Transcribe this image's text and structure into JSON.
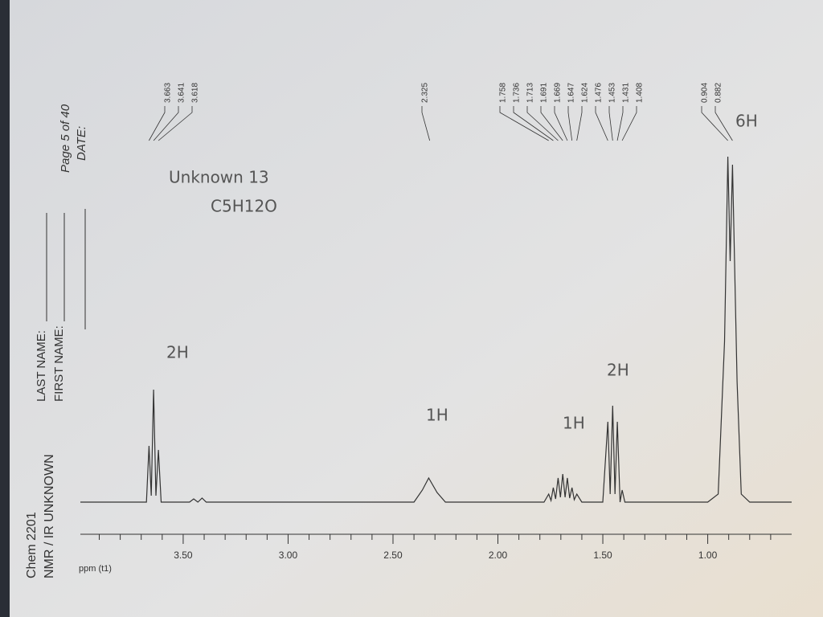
{
  "chart_data": {
    "type": "line",
    "header": {
      "course": "Chem 2201",
      "assignment": "NMR / IR UNKNOWN",
      "last_name": "LAST NAME:",
      "first_name": "FIRST NAME:",
      "page": "Page 5 of 40",
      "date": "DATE:"
    },
    "xlabel": "ppm (t1)",
    "xlim": [
      3.99,
      0.6
    ],
    "xticks": [
      {
        "value": 3.5,
        "label": "3.50"
      },
      {
        "value": 3.0,
        "label": "3.00"
      },
      {
        "value": 2.5,
        "label": "2.50"
      },
      {
        "value": 2.0,
        "label": "2.00"
      },
      {
        "value": 1.5,
        "label": "1.50"
      },
      {
        "value": 1.0,
        "label": "1.00"
      }
    ],
    "minor_xticks": [
      3.9,
      3.8,
      3.7,
      3.6,
      3.4,
      3.3,
      3.2,
      3.1,
      2.9,
      2.8,
      2.7,
      2.6,
      2.4,
      2.3,
      2.2,
      2.1,
      1.9,
      1.8,
      1.7,
      1.6,
      1.4,
      1.3,
      1.2,
      1.1,
      0.9,
      0.8,
      0.7
    ],
    "peaks": [
      3.663,
      3.641,
      3.618,
      2.325,
      1.758,
      1.736,
      1.713,
      1.691,
      1.669,
      1.647,
      1.624,
      1.476,
      1.453,
      1.431,
      1.408,
      0.904,
      0.882
    ],
    "series": [
      {
        "color": "#333333",
        "x": [
          3.99,
          3.7,
          3.675,
          3.663,
          3.652,
          3.641,
          3.63,
          3.618,
          3.605,
          3.47,
          3.45,
          3.43,
          3.41,
          3.39,
          3.37,
          2.4,
          2.36,
          2.33,
          2.29,
          2.25,
          1.78,
          1.758,
          1.747,
          1.736,
          1.725,
          1.713,
          1.702,
          1.691,
          1.68,
          1.669,
          1.658,
          1.647,
          1.636,
          1.624,
          1.6,
          1.5,
          1.476,
          1.465,
          1.453,
          1.442,
          1.431,
          1.418,
          1.408,
          1.395,
          1.0,
          0.95,
          0.92,
          0.904,
          0.893,
          0.882,
          0.86,
          0.84,
          0.8,
          0.6
        ],
        "values": [
          0,
          0,
          0,
          70,
          8,
          140,
          8,
          65,
          0,
          0,
          4,
          0,
          5,
          0,
          0,
          0,
          15,
          30,
          12,
          0,
          0,
          10,
          2,
          18,
          4,
          30,
          6,
          35,
          6,
          30,
          5,
          18,
          3,
          10,
          0,
          0,
          100,
          10,
          120,
          10,
          100,
          0,
          15,
          0,
          0,
          10,
          200,
          430,
          300,
          420,
          150,
          10,
          0,
          0
        ]
      }
    ],
    "annotations": [
      "Unknown 13",
      "C5H12O",
      "2H",
      "1H",
      "1H",
      "2H",
      "6H"
    ]
  }
}
